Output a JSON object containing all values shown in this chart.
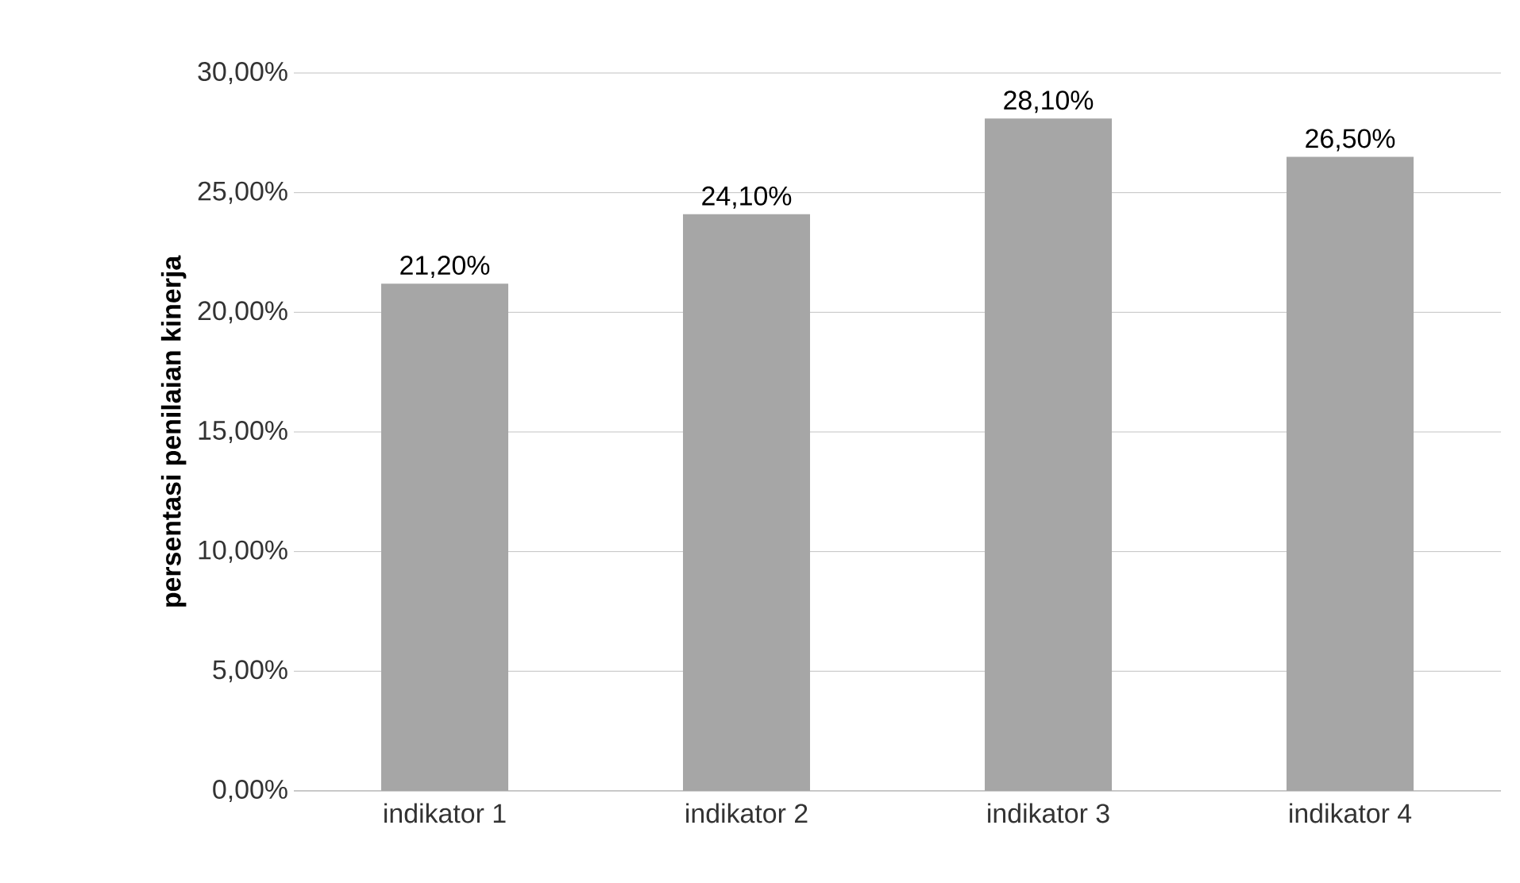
{
  "chart_data": {
    "type": "bar",
    "ylabel": "persentasi penilaian kinerja",
    "categories": [
      "indikator 1",
      "indikator 2",
      "indikator 3",
      "indikator 4"
    ],
    "values": [
      21.2,
      24.1,
      28.1,
      26.5
    ],
    "value_labels": [
      "21,20%",
      "24,10%",
      "28,10%",
      "26,50%"
    ],
    "color": "#a6a6a6",
    "ylim": [
      0,
      30
    ],
    "yticks": [
      {
        "value": 0,
        "label": "0,00%"
      },
      {
        "value": 5,
        "label": "5,00%"
      },
      {
        "value": 10,
        "label": "10,00%"
      },
      {
        "value": 15,
        "label": "15,00%"
      },
      {
        "value": 20,
        "label": "20,00%"
      },
      {
        "value": 25,
        "label": "25,00%"
      },
      {
        "value": 30,
        "label": "30,00%"
      }
    ],
    "grid": "y"
  }
}
